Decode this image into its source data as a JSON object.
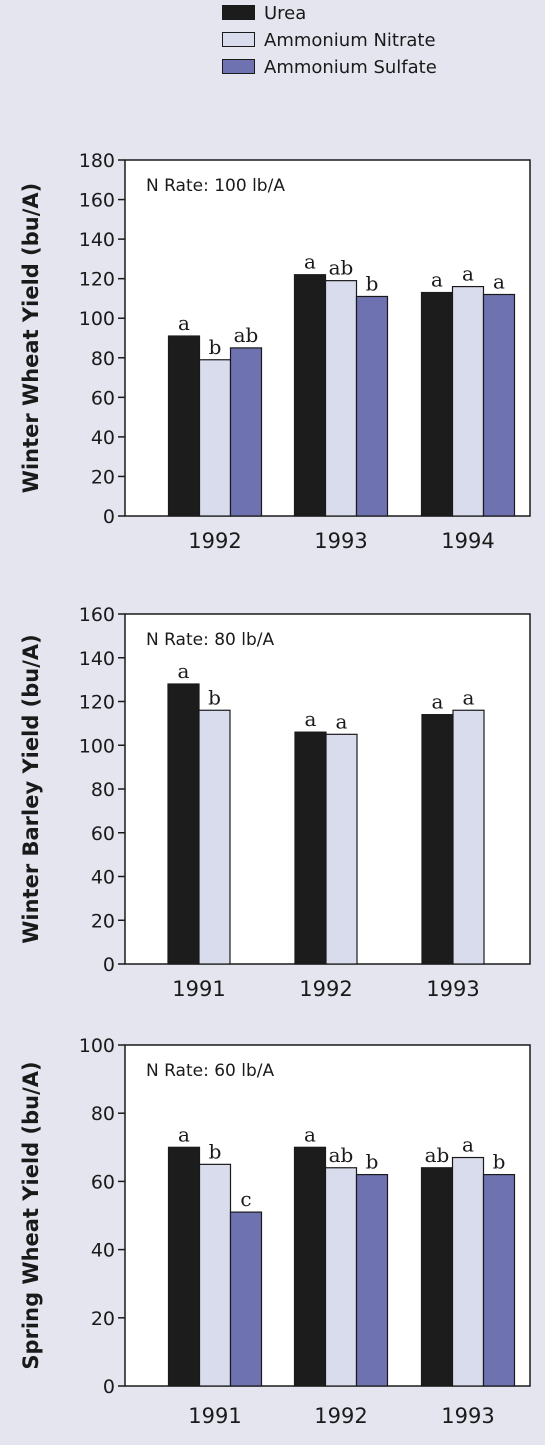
{
  "legend": [
    {
      "name": "Urea",
      "color": "#1c1c1c"
    },
    {
      "name": "Ammonium Nitrate",
      "color": "#d9dced"
    },
    {
      "name": "Ammonium Sulfate",
      "color": "#6f72b0"
    }
  ],
  "chart_data": [
    {
      "type": "bar",
      "annotation": "N Rate: 100 lb/A",
      "ylabel": "Winter Wheat Yield (bu/A)",
      "ylim": [
        0,
        180
      ],
      "yticks": [
        0,
        20,
        40,
        60,
        80,
        100,
        120,
        140,
        160,
        180
      ],
      "categories": [
        "1992",
        "1993",
        "1994"
      ],
      "series": [
        {
          "name": "Urea",
          "values": [
            91,
            122,
            113
          ],
          "labels": [
            "a",
            "a",
            "a"
          ]
        },
        {
          "name": "Ammonium Nitrate",
          "values": [
            79,
            119,
            116
          ],
          "labels": [
            "b",
            "ab",
            "a"
          ]
        },
        {
          "name": "Ammonium Sulfate",
          "values": [
            85,
            111,
            112
          ],
          "labels": [
            "ab",
            "b",
            "a"
          ]
        }
      ]
    },
    {
      "type": "bar",
      "annotation": "N Rate: 80 lb/A",
      "ylabel": "Winter Barley Yield (bu/A)",
      "ylim": [
        0,
        160
      ],
      "yticks": [
        0,
        20,
        40,
        60,
        80,
        100,
        120,
        140,
        160
      ],
      "categories": [
        "1991",
        "1992",
        "1993"
      ],
      "series": [
        {
          "name": "Urea",
          "values": [
            128,
            106,
            114
          ],
          "labels": [
            "a",
            "a",
            "a"
          ]
        },
        {
          "name": "Ammonium Nitrate",
          "values": [
            116,
            105,
            116
          ],
          "labels": [
            "b",
            "a",
            "a"
          ]
        }
      ]
    },
    {
      "type": "bar",
      "annotation": "N Rate: 60 lb/A",
      "ylabel": "Spring Wheat Yield (bu/A)",
      "ylim": [
        0,
        100
      ],
      "yticks": [
        0,
        20,
        40,
        60,
        80,
        100
      ],
      "categories": [
        "1991",
        "1992",
        "1993"
      ],
      "series": [
        {
          "name": "Urea",
          "values": [
            70,
            70,
            64
          ],
          "labels": [
            "a",
            "a",
            "ab"
          ]
        },
        {
          "name": "Ammonium Nitrate",
          "values": [
            65,
            64,
            67
          ],
          "labels": [
            "b",
            "ab",
            "a"
          ]
        },
        {
          "name": "Ammonium Sulfate",
          "values": [
            51,
            62,
            62
          ],
          "labels": [
            "c",
            "b",
            "b"
          ]
        }
      ]
    }
  ]
}
